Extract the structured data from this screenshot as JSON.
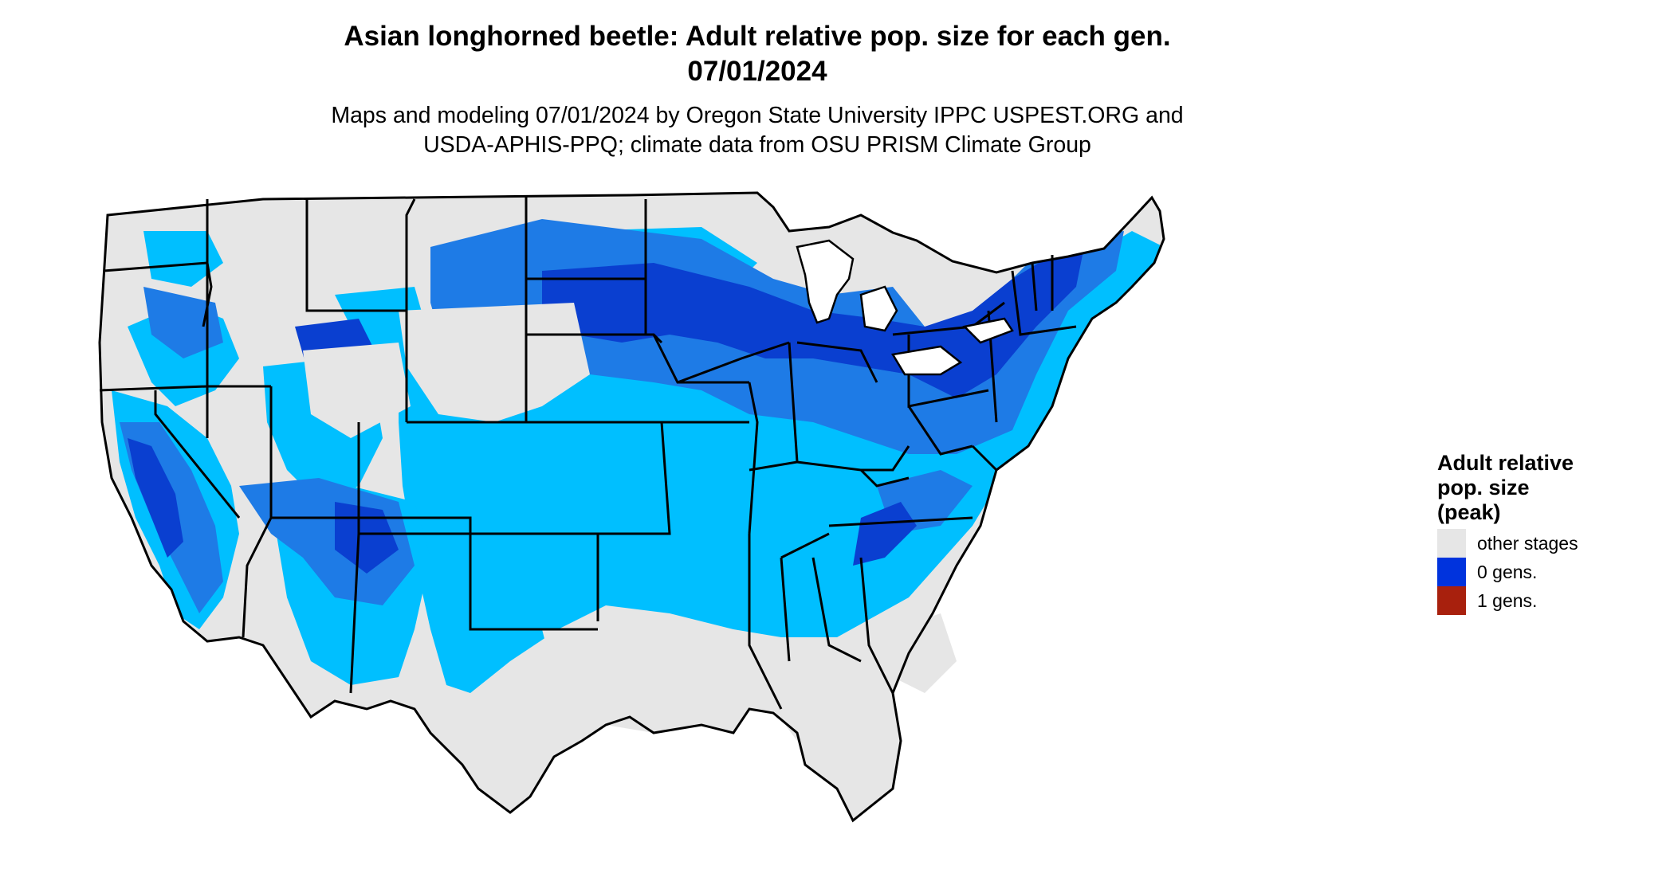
{
  "title": {
    "line1": "Asian longhorned beetle: Adult relative pop. size for each gen.",
    "line2": "07/01/2024"
  },
  "subtitle": {
    "line1": "Maps and modeling 07/01/2024 by Oregon State University IPPC USPEST.ORG and",
    "line2": "USDA-APHIS-PPQ; climate data from OSU PRISM Climate Group"
  },
  "legend": {
    "title_line1": "Adult relative",
    "title_line2": "pop. size",
    "title_line3": "(peak)",
    "items": [
      {
        "label": "other stages",
        "color": "#e6e6e6"
      },
      {
        "label": "0 gens.",
        "color": "#0033dd"
      },
      {
        "label": "1 gens.",
        "color": "#a8200d"
      }
    ]
  },
  "colors": {
    "land_other": "#e6e6e6",
    "light_blue": "#00bfff",
    "medium_blue": "#1e7be6",
    "dark_blue": "#0a3fd0",
    "borders": "#000000"
  }
}
